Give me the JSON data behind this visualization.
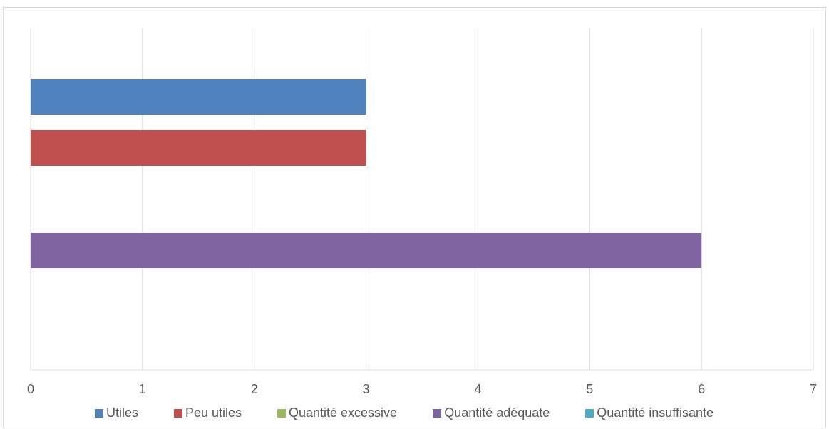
{
  "chart_data": {
    "type": "bar",
    "orientation": "horizontal",
    "categories": [
      null
    ],
    "series": [
      {
        "name": "Utiles",
        "color": "#4f81bd",
        "values": [
          3
        ]
      },
      {
        "name": "Peu utiles",
        "color": "#c0504d",
        "values": [
          3
        ]
      },
      {
        "name": "Quantité excessive",
        "color": "#9bbb59",
        "values": [
          0
        ]
      },
      {
        "name": "Quantité adéquate",
        "color": "#8064a2",
        "values": [
          6
        ]
      },
      {
        "name": "Quantité insuffisante",
        "color": "#4bacc6",
        "values": [
          0
        ]
      }
    ],
    "xlim": [
      0,
      7
    ],
    "xticks": [
      0,
      1,
      2,
      3,
      4,
      5,
      6,
      7
    ],
    "grid": "x",
    "legend": "bottom"
  }
}
